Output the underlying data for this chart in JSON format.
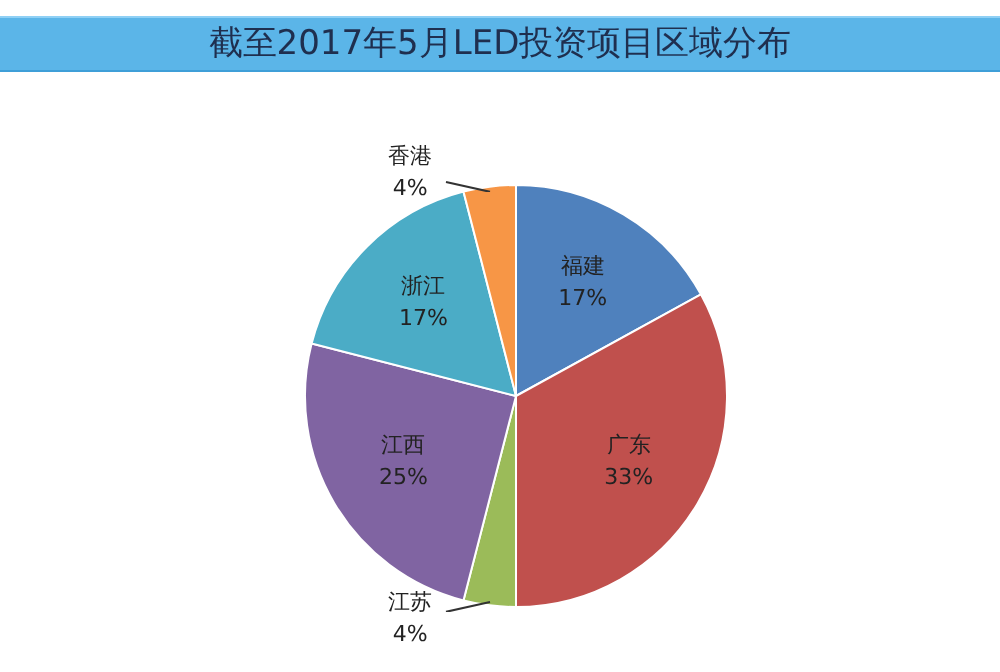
{
  "chart_data": {
    "type": "pie",
    "title": "截至2017年5月LED投资项目区域分布",
    "categories": [
      "福建",
      "广东",
      "江苏",
      "江西",
      "浙江",
      "香港"
    ],
    "values": [
      17,
      33,
      4,
      25,
      17,
      4
    ],
    "colors": [
      "#4f81bd",
      "#c0504d",
      "#9bbb59",
      "#8064a2",
      "#4bacc6",
      "#f79646"
    ],
    "value_labels": [
      "17%",
      "33%",
      "4%",
      "25%",
      "17%",
      "4%"
    ],
    "legend": false
  }
}
